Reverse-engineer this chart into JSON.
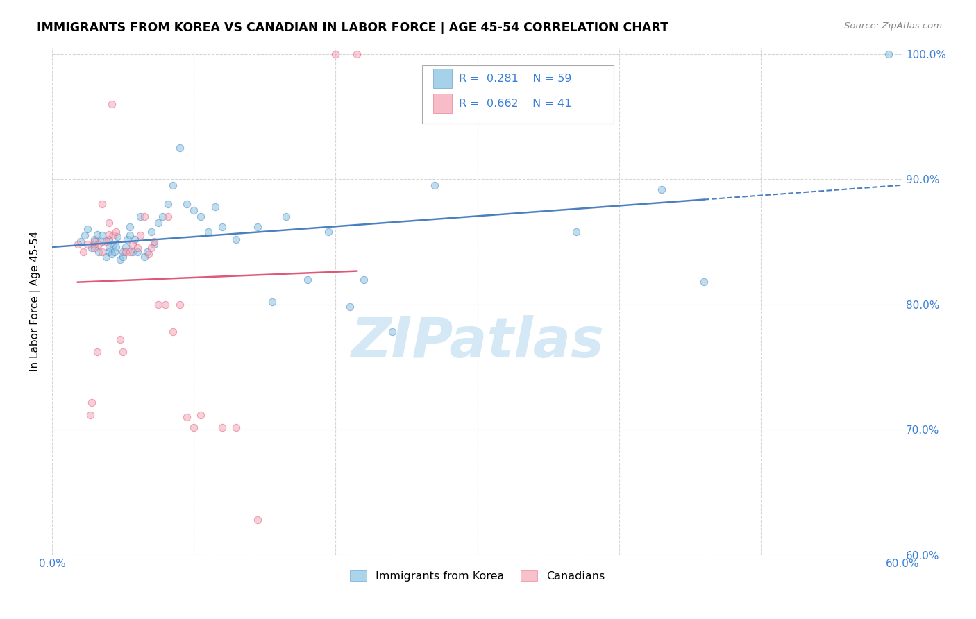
{
  "title": "IMMIGRANTS FROM KOREA VS CANADIAN IN LABOR FORCE | AGE 45-54 CORRELATION CHART",
  "source": "Source: ZipAtlas.com",
  "ylabel": "In Labor Force | Age 45-54",
  "xlim": [
    0.0,
    0.6
  ],
  "ylim": [
    0.6,
    1.005
  ],
  "xticks": [
    0.0,
    0.1,
    0.2,
    0.3,
    0.4,
    0.5,
    0.6
  ],
  "xticklabels": [
    "0.0%",
    "",
    "",
    "",
    "",
    "",
    "60.0%"
  ],
  "yticks": [
    0.6,
    0.7,
    0.8,
    0.9,
    1.0
  ],
  "yticklabels": [
    "60.0%",
    "70.0%",
    "80.0%",
    "90.0%",
    "100.0%"
  ],
  "legend1_label": "Immigrants from Korea",
  "legend2_label": "Canadians",
  "r_blue": "0.281",
  "n_blue": "59",
  "r_pink": "0.662",
  "n_pink": "41",
  "blue_color": "#7fbfdf",
  "pink_color": "#f4a0b0",
  "blue_line_color": "#4a7fc0",
  "pink_line_color": "#e05878",
  "watermark": "ZIPatlas",
  "watermark_color": "#cde4f5",
  "blue_scatter_x": [
    0.02,
    0.023,
    0.025,
    0.028,
    0.03,
    0.03,
    0.032,
    0.033,
    0.035,
    0.035,
    0.038,
    0.04,
    0.04,
    0.04,
    0.042,
    0.043,
    0.044,
    0.045,
    0.046,
    0.048,
    0.05,
    0.05,
    0.052,
    0.053,
    0.055,
    0.055,
    0.057,
    0.058,
    0.06,
    0.062,
    0.065,
    0.067,
    0.07,
    0.072,
    0.075,
    0.078,
    0.082,
    0.085,
    0.09,
    0.095,
    0.1,
    0.105,
    0.11,
    0.115,
    0.12,
    0.13,
    0.145,
    0.155,
    0.165,
    0.18,
    0.195,
    0.21,
    0.22,
    0.24,
    0.27,
    0.37,
    0.43,
    0.46,
    0.59
  ],
  "blue_scatter_y": [
    0.85,
    0.855,
    0.86,
    0.845,
    0.848,
    0.852,
    0.856,
    0.842,
    0.85,
    0.855,
    0.838,
    0.842,
    0.846,
    0.852,
    0.84,
    0.848,
    0.842,
    0.846,
    0.854,
    0.836,
    0.838,
    0.842,
    0.846,
    0.852,
    0.855,
    0.862,
    0.842,
    0.852,
    0.842,
    0.87,
    0.838,
    0.842,
    0.858,
    0.848,
    0.865,
    0.87,
    0.88,
    0.895,
    0.925,
    0.88,
    0.875,
    0.87,
    0.858,
    0.878,
    0.862,
    0.852,
    0.862,
    0.802,
    0.87,
    0.82,
    0.858,
    0.798,
    0.82,
    0.778,
    0.895,
    0.858,
    0.892,
    0.818,
    1.0
  ],
  "pink_scatter_x": [
    0.018,
    0.022,
    0.025,
    0.027,
    0.028,
    0.03,
    0.03,
    0.032,
    0.033,
    0.035,
    0.035,
    0.038,
    0.04,
    0.04,
    0.042,
    0.043,
    0.045,
    0.048,
    0.05,
    0.052,
    0.055,
    0.057,
    0.06,
    0.062,
    0.065,
    0.068,
    0.07,
    0.072,
    0.075,
    0.08,
    0.082,
    0.085,
    0.09,
    0.095,
    0.1,
    0.105,
    0.12,
    0.13,
    0.145,
    0.2,
    0.215
  ],
  "pink_scatter_y": [
    0.848,
    0.842,
    0.848,
    0.712,
    0.722,
    0.845,
    0.85,
    0.762,
    0.848,
    0.842,
    0.88,
    0.85,
    0.856,
    0.865,
    0.96,
    0.855,
    0.858,
    0.772,
    0.762,
    0.842,
    0.842,
    0.848,
    0.845,
    0.855,
    0.87,
    0.84,
    0.845,
    0.85,
    0.8,
    0.8,
    0.87,
    0.778,
    0.8,
    0.71,
    0.702,
    0.712,
    0.702,
    0.702,
    0.628,
    1.0,
    1.0
  ]
}
